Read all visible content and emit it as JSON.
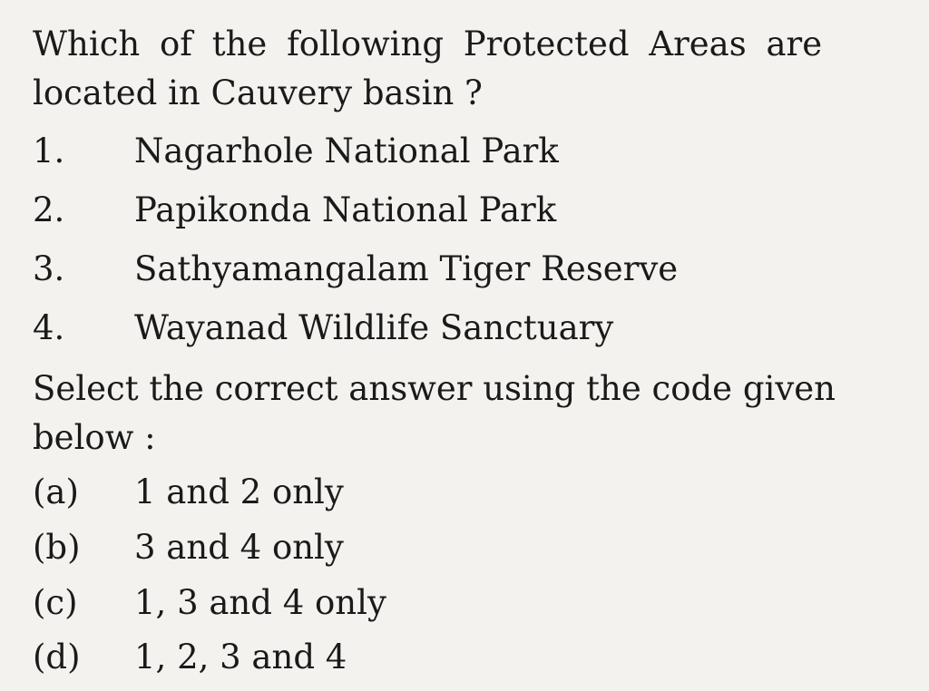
{
  "question": {
    "line1": "Which of the following Protected Areas are",
    "line2": "located in Cauvery basin ?"
  },
  "items": [
    {
      "num": "1.",
      "text": "Nagarhole National Park"
    },
    {
      "num": "2.",
      "text": "Papikonda National Park"
    },
    {
      "num": "3.",
      "text": "Sathyamangalam Tiger Reserve"
    },
    {
      "num": "4.",
      "text": "Wayanad Wildlife Sanctuary"
    }
  ],
  "instruction": {
    "line1": "Select the correct answer using the code given",
    "line2": "below :"
  },
  "options": [
    {
      "label": "(a)",
      "text": "1 and 2 only"
    },
    {
      "label": "(b)",
      "text": "3 and 4 only"
    },
    {
      "label": "(c)",
      "text": "1, 3 and 4 only"
    },
    {
      "label": "(d)",
      "text": "1, 2, 3 and 4"
    }
  ]
}
